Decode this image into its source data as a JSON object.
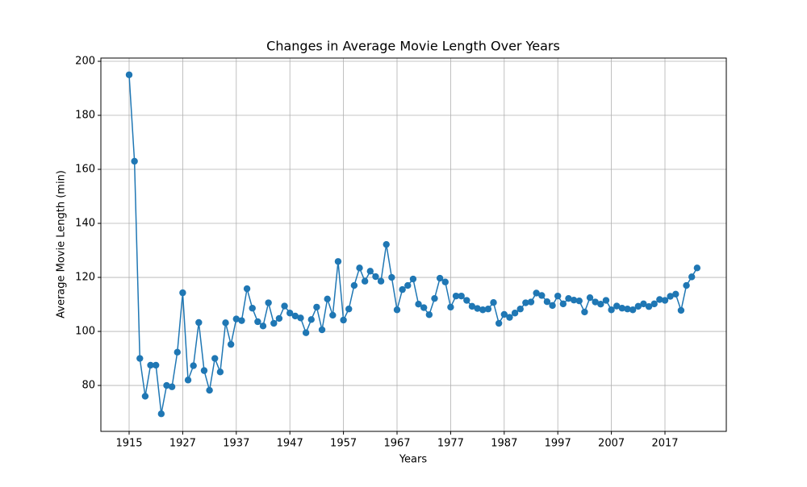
{
  "chart_data": {
    "type": "line",
    "title": "Changes in Average Movie Length Over Years",
    "x_label": "Years",
    "y_label": "Average Movie Length (min)",
    "categories": [
      "1915",
      null,
      null,
      null,
      null,
      null,
      null,
      null,
      null,
      null,
      "1927",
      null,
      null,
      null,
      null,
      null,
      null,
      null,
      null,
      null,
      "1937",
      null,
      null,
      null,
      null,
      null,
      null,
      null,
      null,
      null,
      "1947",
      null,
      null,
      null,
      null,
      null,
      null,
      null,
      null,
      null,
      "1957",
      null,
      null,
      null,
      null,
      null,
      null,
      null,
      null,
      null,
      "1967",
      null,
      null,
      null,
      null,
      null,
      null,
      null,
      null,
      null,
      "1977",
      null,
      null,
      null,
      null,
      null,
      null,
      null,
      null,
      null,
      "1987",
      null,
      null,
      null,
      null,
      null,
      null,
      null,
      null,
      null,
      "1997",
      null,
      null,
      null,
      null,
      null,
      null,
      null,
      null,
      null,
      "2007",
      null,
      null,
      null,
      null,
      null,
      null,
      null,
      null,
      null,
      "2017",
      null,
      null,
      null,
      null,
      null,
      null
    ],
    "series": [
      {
        "color": "#1f77b4",
        "values": [
          195,
          163,
          90,
          76,
          87.5,
          87.5,
          69.5,
          80,
          79.5,
          92.3,
          114.3,
          82,
          87.3,
          103.3,
          85.5,
          78.2,
          90,
          85,
          103.2,
          95.2,
          104.6,
          104,
          115.8,
          108.6,
          103.6,
          102,
          110.6,
          103,
          104.8,
          109.4,
          106.8,
          105.7,
          105,
          99.5,
          104.4,
          109,
          100.6,
          112,
          106,
          125.9,
          104.2,
          108.3,
          117,
          123.5,
          118.6,
          122.3,
          120.3,
          118.6,
          132.2,
          120,
          108,
          115.5,
          117,
          119.4,
          110.1,
          108.8,
          106.2,
          112.2,
          119.7,
          118.3,
          109,
          113.1,
          113.1,
          111.5,
          109.3,
          108.5,
          108,
          108.3,
          110.7,
          103,
          106.3,
          105.2,
          106.8,
          108.3,
          110.6,
          110.9,
          114.2,
          113.3,
          111,
          109.6,
          113.1,
          110.2,
          112.2,
          111.6,
          111.3,
          107.2,
          112.5,
          110.9,
          110.1,
          111.5,
          108,
          109.4,
          108.6,
          108.3,
          108,
          109.3,
          110.2,
          109.2,
          110.2,
          111.8,
          111.5,
          113,
          113.8,
          107.8,
          117,
          120.2,
          123.5
        ]
      }
    ],
    "ylim": [
      63,
      201.2
    ],
    "yticks": [
      80,
      100,
      120,
      140,
      160,
      180,
      200
    ],
    "grid": true
  }
}
